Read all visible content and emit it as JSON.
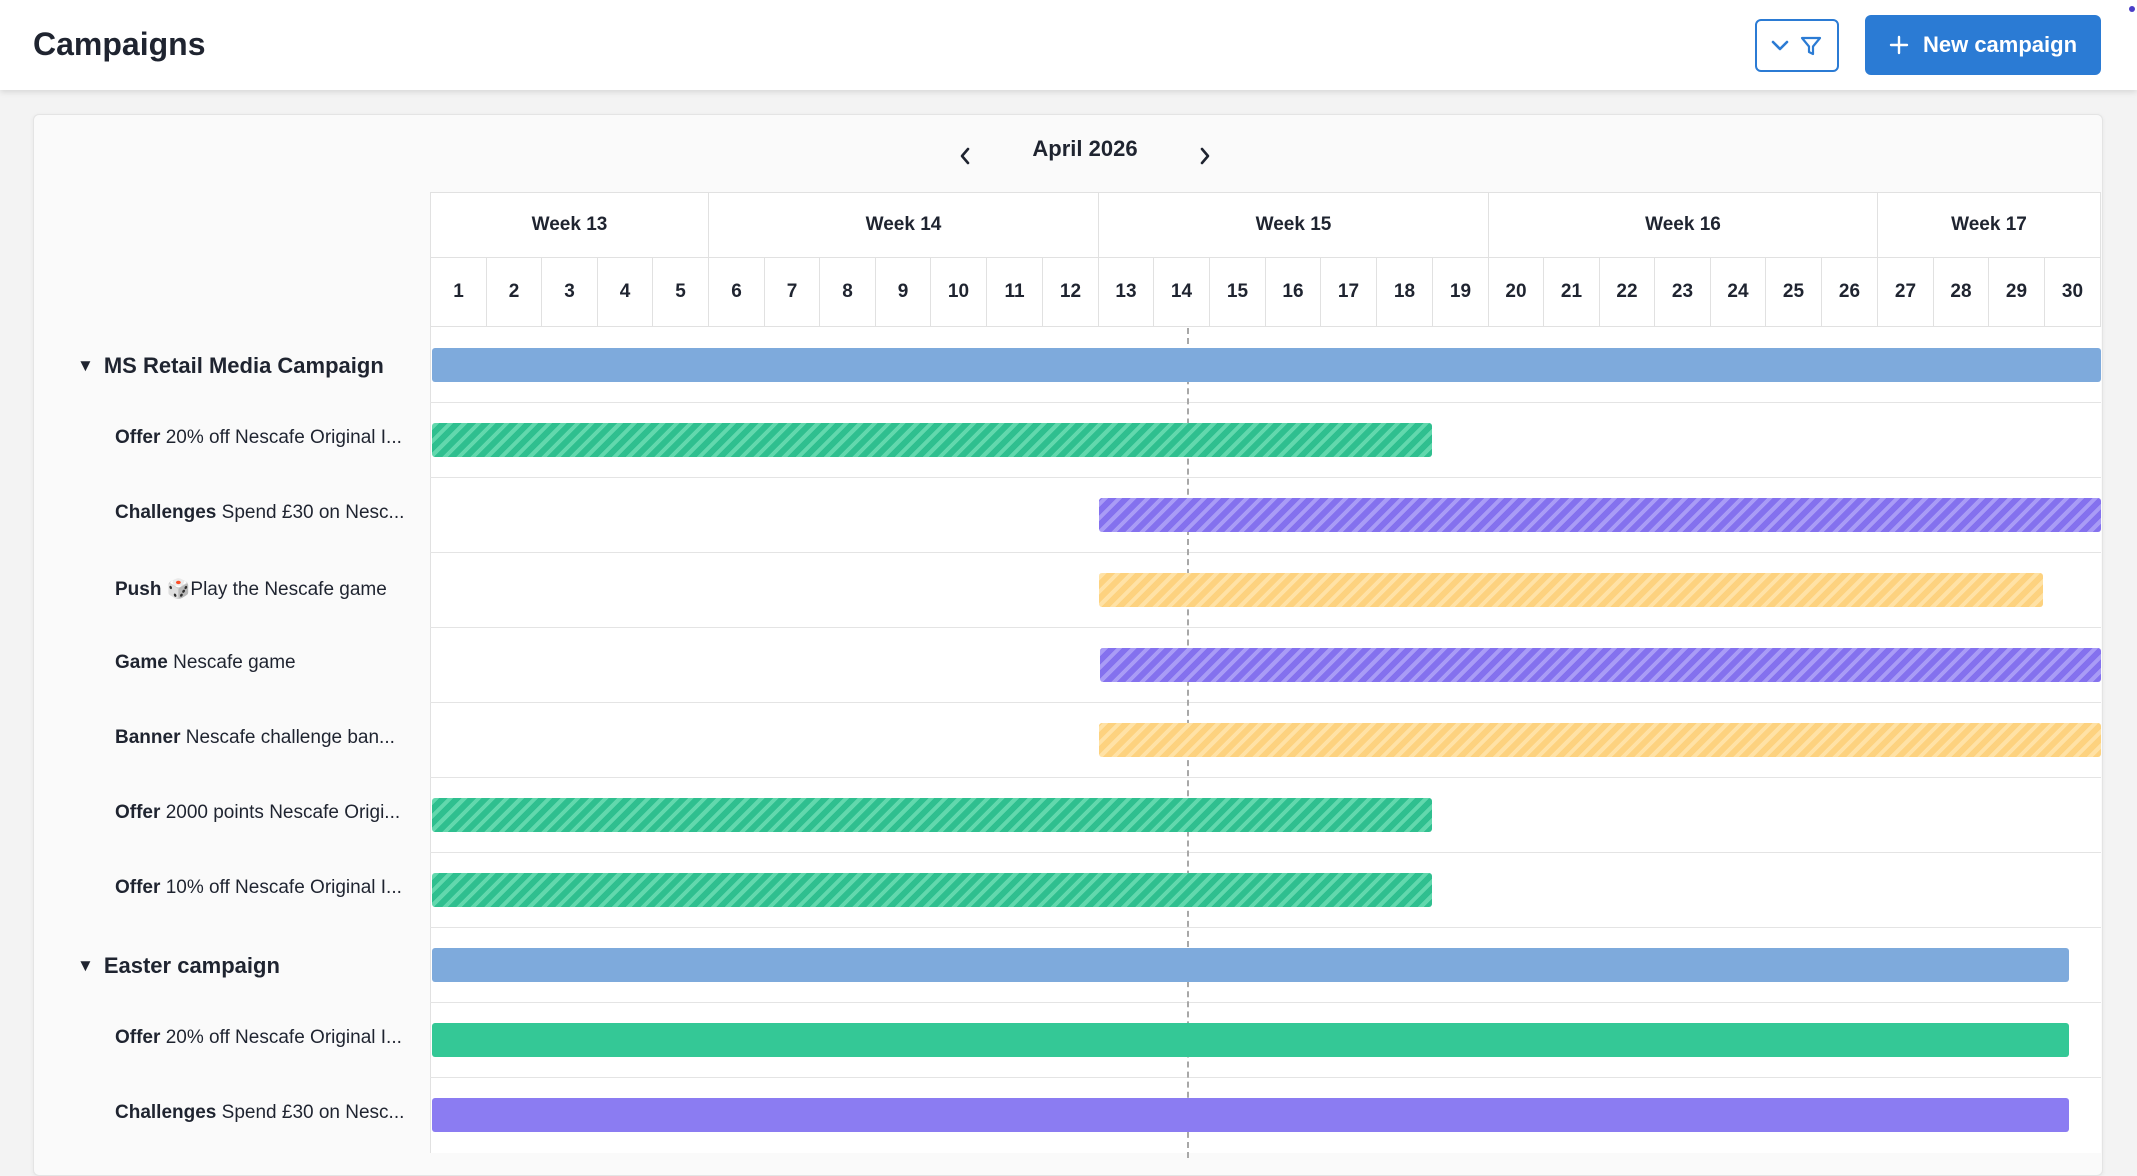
{
  "header": {
    "title": "Campaigns",
    "new_button_label": "New campaign",
    "filter_icons": [
      "chevron-down-icon",
      "filter-icon"
    ]
  },
  "colors": {
    "primary": "#2b7bd4",
    "group_bar": "#7eaadc",
    "offer": "#34c896",
    "challenge_game": "#8b7cf2",
    "push_banner": "#fdd27f"
  },
  "calendar": {
    "month": "April 2026",
    "weeks": [
      "Week 13",
      "Week 14",
      "Week 15",
      "Week 16",
      "Week 17"
    ],
    "days": [
      "1",
      "2",
      "3",
      "4",
      "5",
      "6",
      "7",
      "8",
      "9",
      "10",
      "11",
      "12",
      "13",
      "14",
      "15",
      "16",
      "17",
      "18",
      "19",
      "20",
      "21",
      "22",
      "23",
      "24",
      "25",
      "26",
      "27",
      "28",
      "29",
      "30"
    ]
  },
  "campaigns": [
    {
      "name": "MS Retail Media Campaign",
      "items": [
        {
          "type": "Offer",
          "text": "20% off Nescafe Original I..."
        },
        {
          "type": "Challenges",
          "text": "Spend £30 on Nesc..."
        },
        {
          "type": "Push",
          "text": "🎲Play the Nescafe game"
        },
        {
          "type": "Game",
          "text": "Nescafe game"
        },
        {
          "type": "Banner",
          "text": "Nescafe challenge ban..."
        },
        {
          "type": "Offer",
          "text": "2000 points Nescafe Origi..."
        },
        {
          "type": "Offer",
          "text": "10% off Nescafe Original I..."
        }
      ]
    },
    {
      "name": "Easter campaign",
      "items": [
        {
          "type": "Offer",
          "text": "20% off Nescafe Original I..."
        },
        {
          "type": "Challenges",
          "text": "Spend £30 on Nesc..."
        }
      ]
    }
  ]
}
